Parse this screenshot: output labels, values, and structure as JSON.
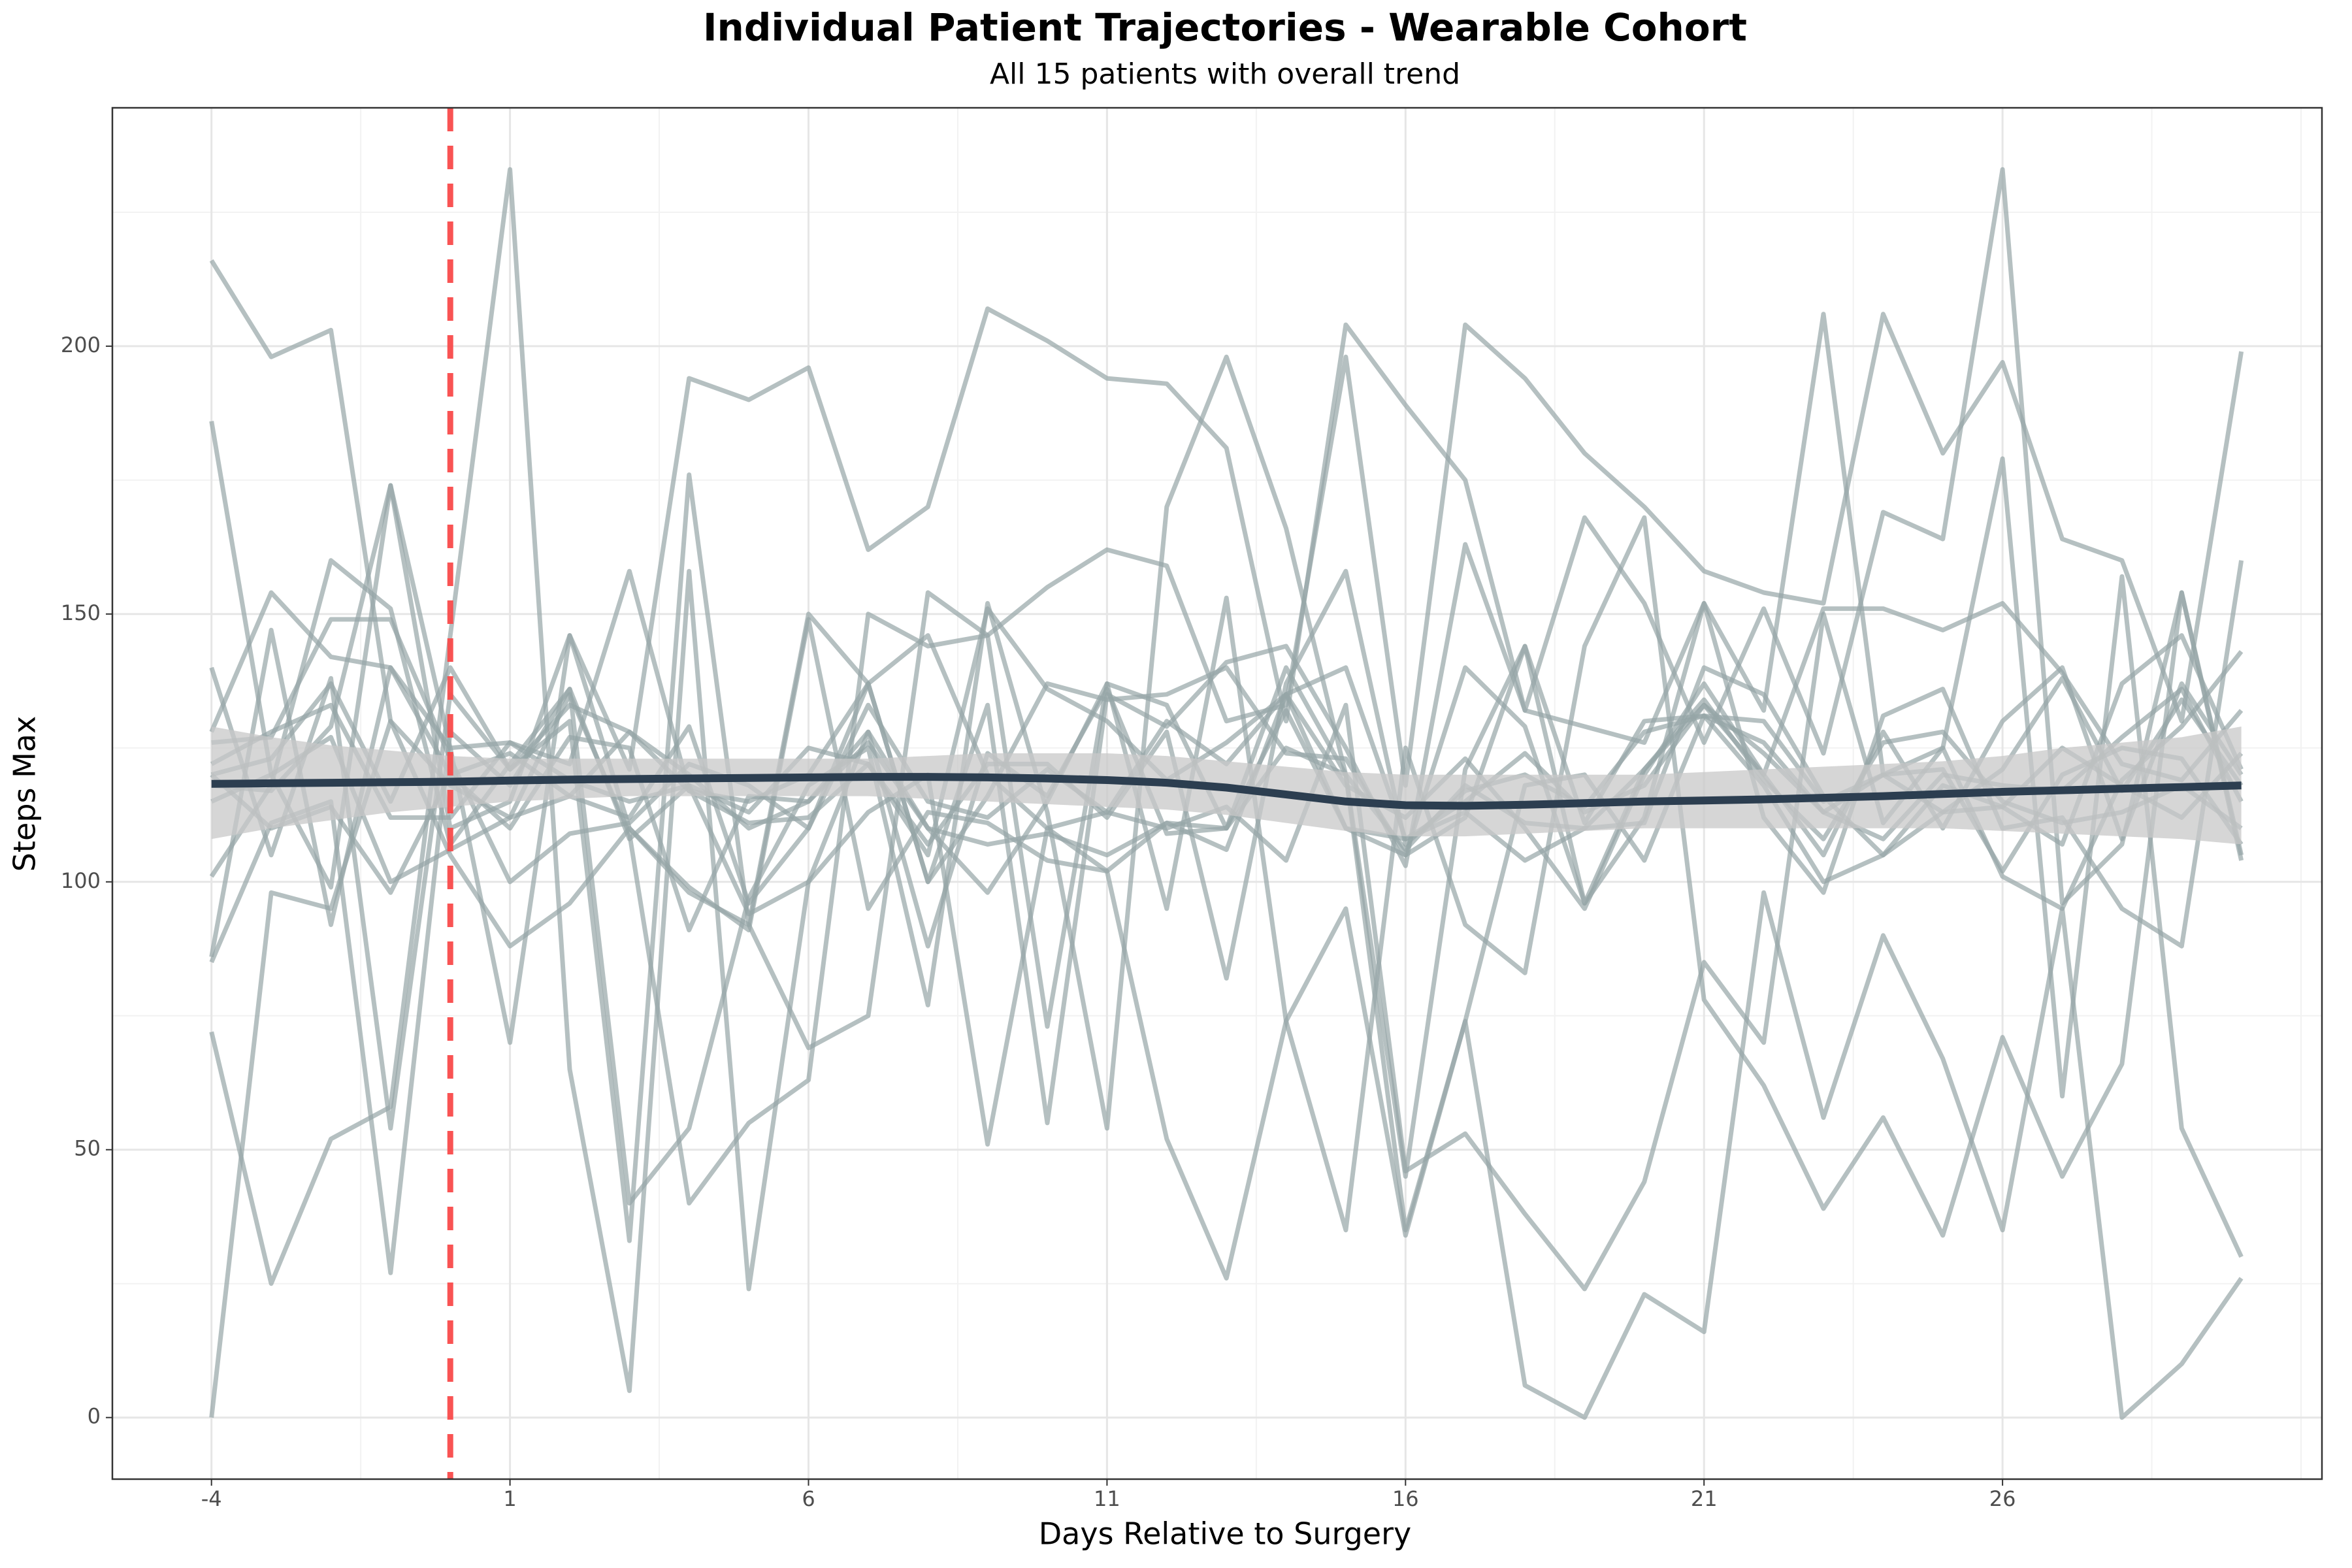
{
  "chart_data": {
    "type": "line",
    "title": "Individual Patient Trajectories - Wearable Cohort",
    "subtitle": "All 15 patients with overall trend",
    "x_label": "Days Relative to Surgery",
    "y_label": "Steps Max",
    "xlim": [
      -5.66,
      31.35
    ],
    "ylim": [
      -11.5,
      244.5
    ],
    "xticks": [
      -4,
      1,
      6,
      11,
      16,
      21,
      26
    ],
    "yticks": [
      0,
      50,
      100,
      150,
      200
    ],
    "x_minor_grid": [
      -1.5,
      3.5,
      8.5,
      13.5,
      18.5,
      23.5,
      28.5,
      31
    ],
    "y_minor_grid": [
      25,
      75,
      125,
      175,
      225
    ],
    "grid": true,
    "line_color": "#95a5a6",
    "vline_x": 0,
    "vline_color": "#f94a4a",
    "x": [
      -4,
      -3,
      -2,
      -1,
      0,
      1,
      2,
      3,
      4,
      5,
      6,
      7,
      8,
      9,
      10,
      11,
      12,
      13,
      14,
      15,
      16,
      17,
      18,
      19,
      20,
      21,
      22,
      23,
      24,
      25,
      26,
      27,
      28,
      29,
      30
    ],
    "series": [
      {
        "values": [
          216,
          198,
          203,
          130,
          118,
          112,
          135,
          109,
          40,
          55,
          63,
          150,
          144,
          146,
          155,
          162,
          159,
          130,
          133,
          198,
          118,
          204,
          194,
          180,
          170,
          158,
          154,
          152,
          206,
          180,
          197,
          164,
          160,
          130,
          199
        ]
      },
      {
        "values": [
          186,
          120,
          99,
          174,
          125,
          70,
          146,
          121,
          194,
          190,
          196,
          162,
          170,
          207,
          201,
          194,
          193,
          181,
          130,
          204,
          189,
          175,
          132,
          168,
          152,
          126,
          151,
          124,
          169,
          164,
          233,
          96,
          107,
          154,
          104
        ]
      },
      {
        "values": [
          72,
          25,
          52,
          58,
          146,
          233,
          65,
          5,
          158,
          24,
          100,
          113,
          120,
          51,
          110,
          102,
          52,
          26,
          74,
          95,
          34,
          74,
          6,
          0,
          23,
          16,
          98,
          56,
          90,
          67,
          35,
          95,
          0,
          10,
          26
        ]
      },
      {
        "values": [
          0,
          98,
          95,
          130,
          105,
          88,
          96,
          110,
          98,
          92,
          69,
          75,
          154,
          146,
          73,
          137,
          95,
          153,
          74,
          35,
          125,
          92,
          83,
          144,
          168,
          78,
          62,
          39,
          56,
          34,
          71,
          45,
          66,
          154,
          105
        ]
      },
      {
        "values": [
          101,
          118,
          160,
          151,
          107,
          122,
          136,
          40,
          54,
          97,
          118,
          125,
          77,
          152,
          113,
          54,
          170,
          198,
          166,
          120,
          45,
          121,
          144,
          96,
          112,
          152,
          132,
          206,
          120,
          125,
          179,
          60,
          157,
          54,
          30
        ]
      },
      {
        "values": [
          140,
          105,
          138,
          54,
          135,
          121,
          130,
          33,
          176,
          92,
          150,
          137,
          100,
          133,
          55,
          135,
          129,
          141,
          144,
          125,
          103,
          163,
          132,
          129,
          126,
          152,
          112,
          98,
          131,
          136,
          110,
          112,
          95,
          88,
          160
        ]
      },
      {
        "values": [
          86,
          147,
          92,
          140,
          125,
          126,
          122,
          158,
          117,
          115,
          120,
          137,
          100,
          116,
          137,
          134,
          135,
          140,
          124,
          123,
          105,
          140,
          129,
          96,
          121,
          133,
          120,
          105,
          128,
          110,
          130,
          140,
          108,
          137,
          120
        ]
      },
      {
        "values": [
          126,
          127,
          149,
          149,
          123,
          100,
          109,
          111,
          122,
          118,
          110,
          133,
          115,
          112,
          121,
          113,
          110,
          114,
          104,
          133,
          46,
          53,
          38,
          24,
          44,
          85,
          70,
          150,
          111,
          125,
          101,
          95,
          119,
          129,
          143
        ]
      },
      {
        "values": [
          120,
          110,
          114,
          98,
          120,
          110,
          127,
          125,
          91,
          116,
          115,
          128,
          110,
          107,
          109,
          105,
          111,
          106,
          135,
          140,
          108,
          113,
          104,
          110,
          111,
          140,
          135,
          116,
          105,
          118,
          114,
          125,
          118,
          112,
          124
        ]
      },
      {
        "values": [
          85,
          111,
          115,
          27,
          128,
          118,
          136,
          108,
          118,
          94,
          100,
          128,
          88,
          124,
          116,
          136,
          109,
          110,
          125,
          120,
          35,
          74,
          118,
          120,
          104,
          131,
          130,
          115,
          120,
          113,
          121,
          138,
          117,
          134,
          118
        ]
      },
      {
        "values": [
          128,
          154,
          142,
          140,
          120,
          124,
          116,
          112,
          129,
          96,
          110,
          137,
          146,
          120,
          110,
          113,
          130,
          122,
          135,
          118,
          112,
          123,
          110,
          95,
          120,
          137,
          120,
          151,
          151,
          147,
          152,
          139,
          122,
          119,
          132
        ]
      },
      {
        "values": [
          118,
          117,
          129,
          174,
          110,
          115,
          146,
          110,
          99,
          91,
          149,
          95,
          113,
          111,
          104,
          102,
          111,
          110,
          132,
          110,
          105,
          112,
          144,
          111,
          130,
          131,
          126,
          113,
          120,
          121,
          102,
          120,
          125,
          123,
          107
        ]
      },
      {
        "values": [
          115,
          120,
          127,
          100,
          106,
          112,
          116,
          128,
          117,
          111,
          112,
          122,
          105,
          151,
          136,
          130,
          119,
          126,
          135,
          110,
          108,
          115,
          124,
          113,
          118,
          133,
          124,
          113,
          108,
          120,
          118,
          117,
          127,
          136,
          115
        ]
      },
      {
        "values": [
          120,
          123,
          137,
          115,
          140,
          121,
          133,
          128,
          120,
          110,
          115,
          126,
          110,
          98,
          115,
          137,
          133,
          110,
          140,
          120,
          106,
          118,
          111,
          110,
          121,
          134,
          119,
          108,
          126,
          128,
          115,
          111,
          113,
          118,
          110
        ]
      },
      {
        "values": [
          122,
          128,
          133,
          112,
          112,
          126,
          119,
          115,
          118,
          113,
          125,
          122,
          107,
          122,
          122,
          112,
          128,
          82,
          137,
          158,
          107,
          117,
          120,
          114,
          128,
          131,
          118,
          100,
          105,
          113,
          114,
          107,
          137,
          146,
          121
        ]
      }
    ],
    "trend": {
      "color": "#2c3e50",
      "band_color": "#c8c8c8",
      "values": [
        118.3,
        118.4,
        118.5,
        118.6,
        118.7,
        118.9,
        119.1,
        119.2,
        119.3,
        119.4,
        119.5,
        119.6,
        119.6,
        119.5,
        119.3,
        119.0,
        118.5,
        117.6,
        116.3,
        115.0,
        114.3,
        114.2,
        114.4,
        114.7,
        115.0,
        115.2,
        115.4,
        115.7,
        116.0,
        116.4,
        116.8,
        117.1,
        117.4,
        117.7,
        118.0
      ],
      "lower": [
        108,
        110,
        111.5,
        113,
        114,
        115,
        115.5,
        116,
        116,
        116,
        116,
        116,
        115.5,
        115,
        114.5,
        114,
        113.5,
        112.5,
        111,
        109.5,
        108.5,
        108.5,
        109,
        109.5,
        110,
        110,
        110,
        110,
        110,
        110,
        109.5,
        109,
        108.5,
        108,
        107
      ],
      "upper": [
        129,
        127,
        125.5,
        124.5,
        123.5,
        123,
        123,
        123,
        123,
        123,
        123,
        123,
        123.5,
        124,
        124,
        124,
        123.5,
        122.5,
        121.5,
        120.5,
        120,
        120,
        120,
        120,
        120,
        120.5,
        121,
        121.5,
        122,
        122.5,
        123.5,
        125,
        126,
        127,
        129
      ]
    }
  }
}
